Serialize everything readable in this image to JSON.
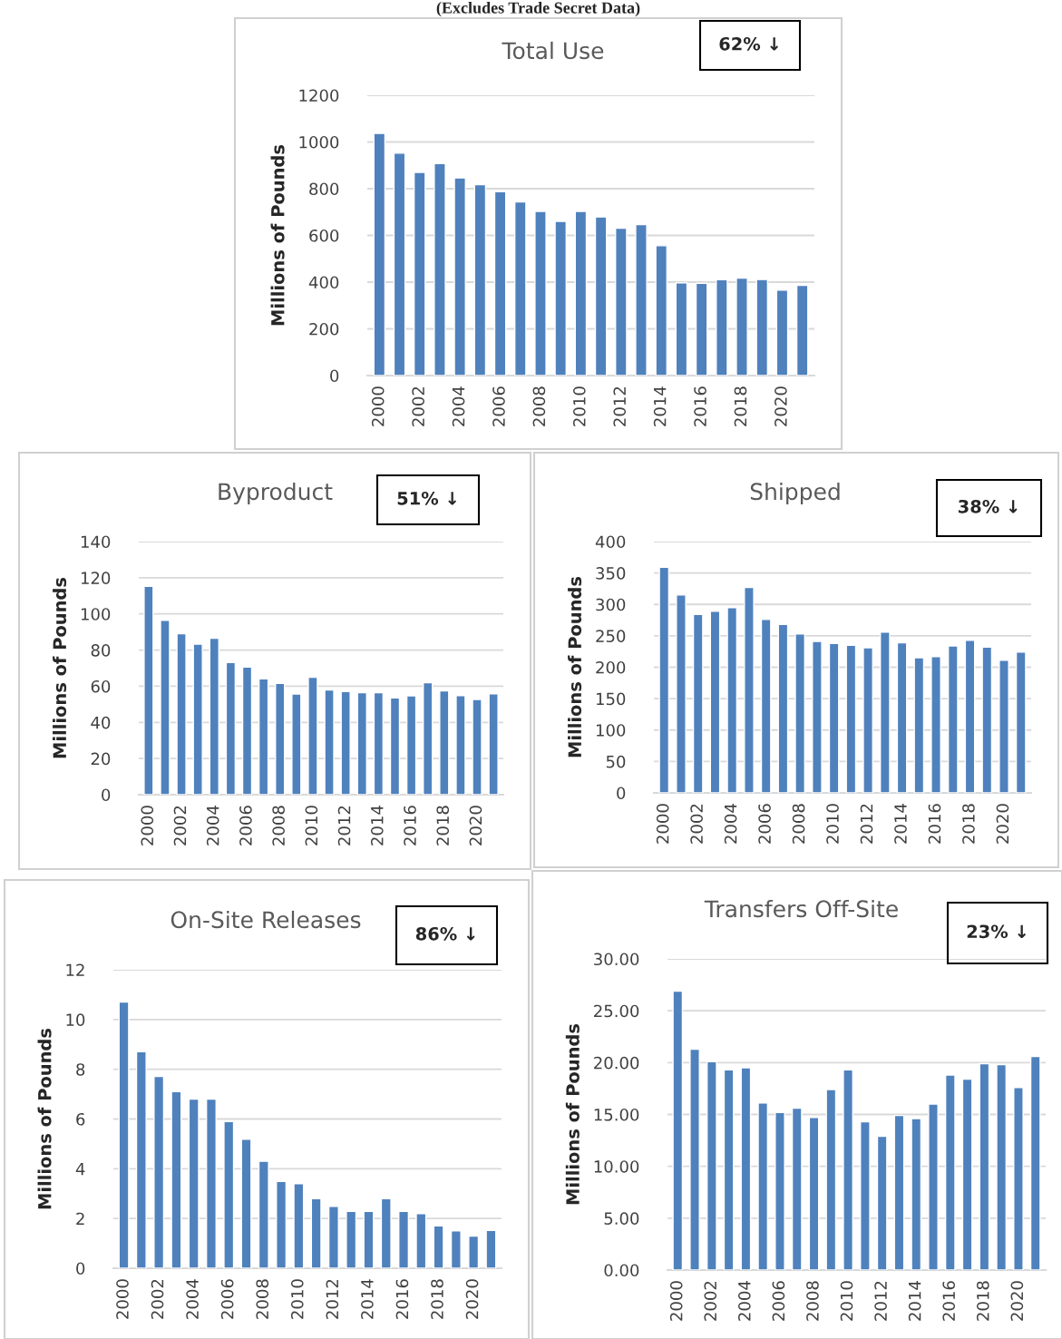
{
  "chart_data": [
    {
      "type": "bar",
      "title": "Total Use",
      "subtitle": "(Excludes Trade Secret Data)",
      "annotations": [
        "62% ↓"
      ],
      "ylabel": "Millions of Pounds",
      "color": "#4f81bd",
      "grid": "y",
      "categories": [
        "2000",
        null,
        "2002",
        null,
        "2004",
        null,
        "2006",
        null,
        "2008",
        null,
        "2010",
        null,
        "2012",
        null,
        "2014",
        null,
        "2016",
        null,
        "2018",
        null,
        "2020",
        null
      ],
      "values": [
        1037,
        952,
        870,
        908,
        846,
        817,
        787,
        743,
        703,
        660,
        703,
        679,
        631,
        646,
        556,
        397,
        395,
        410,
        417,
        411,
        366,
        386
      ],
      "ylim": [
        0,
        1200
      ],
      "yticks": [
        0,
        200,
        400,
        600,
        800,
        1000,
        1200
      ]
    },
    {
      "type": "bar",
      "title": "Byproduct",
      "annotations": [
        "51% ↓"
      ],
      "ylabel": "Millions of Pounds",
      "color": "#4f81bd",
      "grid": "y",
      "categories": [
        "2000",
        null,
        "2002",
        null,
        "2004",
        null,
        "2006",
        null,
        "2008",
        null,
        "2010",
        null,
        "2012",
        null,
        "2014",
        null,
        "2016",
        null,
        "2018",
        null,
        "2020",
        null
      ],
      "values": [
        115.2,
        96.5,
        89,
        83.3,
        86.5,
        73.1,
        70.6,
        64.1,
        61.6,
        55.7,
        64.9,
        57.9,
        57.1,
        56.4,
        56.4,
        53.5,
        54.7,
        61.9,
        57.4,
        54.8,
        52.7,
        55.8
      ],
      "ylim": [
        0,
        140
      ],
      "yticks": [
        0,
        20,
        40,
        60,
        80,
        100,
        120,
        140
      ]
    },
    {
      "type": "bar",
      "title": "Shipped",
      "annotations": [
        "38% ↓"
      ],
      "ylabel": "Millions of Pounds",
      "color": "#4f81bd",
      "grid": "y",
      "categories": [
        "2000",
        null,
        "2002",
        null,
        "2004",
        null,
        "2006",
        null,
        "2008",
        null,
        "2010",
        null,
        "2012",
        null,
        "2014",
        null,
        "2016",
        null,
        "2018",
        null,
        "2020",
        null
      ],
      "values": [
        359,
        315,
        284,
        289,
        295,
        327,
        276,
        268,
        253,
        241,
        238,
        235,
        231,
        256,
        239,
        215,
        217,
        234,
        243,
        232,
        211,
        224
      ],
      "ylim": [
        0,
        400
      ],
      "yticks": [
        0,
        50,
        100,
        150,
        200,
        250,
        300,
        350,
        400
      ]
    },
    {
      "type": "bar",
      "title": "On-Site Releases",
      "annotations": [
        "86% ↓"
      ],
      "ylabel": "Millions of Pounds",
      "color": "#4f81bd",
      "grid": "y",
      "categories": [
        "2000",
        null,
        "2002",
        null,
        "2004",
        null,
        "2006",
        null,
        "2008",
        null,
        "2010",
        null,
        "2012",
        null,
        "2014",
        null,
        "2016",
        null,
        "2018",
        null,
        "2020",
        null
      ],
      "values": [
        10.7,
        8.71,
        7.71,
        7.1,
        6.8,
        6.8,
        5.9,
        5.19,
        4.3,
        3.49,
        3.4,
        2.8,
        2.49,
        2.29,
        2.29,
        2.8,
        2.29,
        2.2,
        1.7,
        1.5,
        1.29,
        1.52
      ],
      "ylim": [
        0,
        12
      ],
      "yticks": [
        0,
        2,
        4,
        6,
        8,
        10,
        12
      ]
    },
    {
      "type": "bar",
      "title": "Transfers Off-Site",
      "annotations": [
        "23% ↓"
      ],
      "ylabel": "Millions of Pounds",
      "color": "#4f81bd",
      "grid": "y",
      "categories": [
        "2000",
        null,
        "2002",
        null,
        "2004",
        null,
        "2006",
        null,
        "2008",
        null,
        "2010",
        null,
        "2012",
        null,
        "2014",
        null,
        "2016",
        null,
        "2018",
        null,
        "2020",
        null
      ],
      "values": [
        26.9,
        21.3,
        20.1,
        19.3,
        19.5,
        16.1,
        15.2,
        15.6,
        14.7,
        17.4,
        19.3,
        14.3,
        12.9,
        14.9,
        14.6,
        16.0,
        18.8,
        18.4,
        19.9,
        19.8,
        17.6,
        20.6
      ],
      "ylim": [
        0,
        30
      ],
      "yticks": [
        {
          "value": 0,
          "label": "0.00"
        },
        {
          "value": 5,
          "label": "5.00"
        },
        {
          "value": 10,
          "label": "10.00"
        },
        {
          "value": 15,
          "label": "15.00"
        },
        {
          "value": 20,
          "label": "20.00"
        },
        {
          "value": 25,
          "label": "25.00"
        },
        {
          "value": 30,
          "label": "30.00"
        }
      ]
    }
  ]
}
